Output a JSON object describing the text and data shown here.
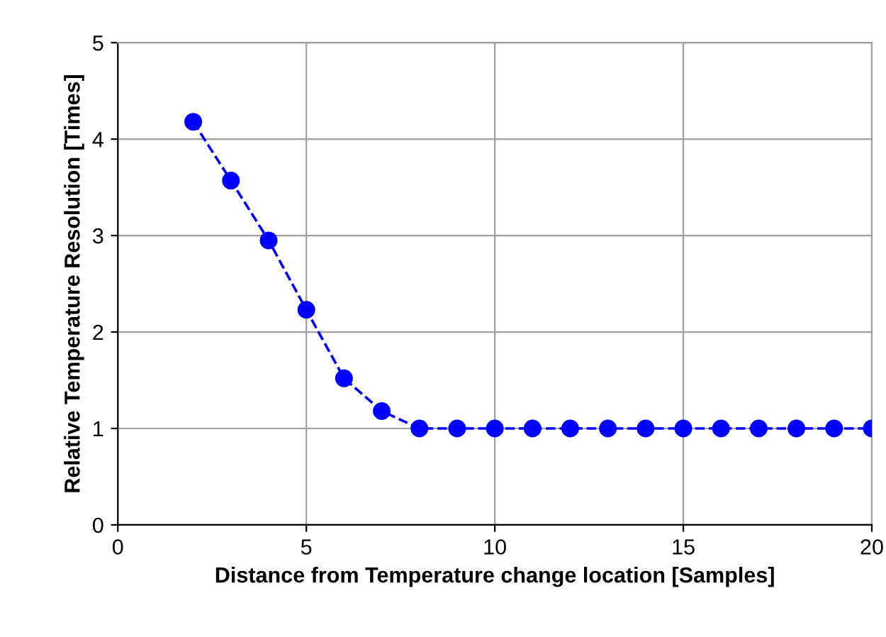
{
  "chart_data": {
    "type": "line",
    "xlabel": "Distance from Temperature change location [Samples]",
    "ylabel": "Relative Temperature Resolution [Times]",
    "x": [
      2,
      3,
      4,
      5,
      6,
      7,
      8,
      9,
      10,
      11,
      12,
      13,
      14,
      15,
      16,
      17,
      18,
      19,
      20
    ],
    "series": [
      {
        "color": "#0000ff",
        "values": [
          4.18,
          3.57,
          2.95,
          2.23,
          1.52,
          1.18,
          1.0,
          1.0,
          1.0,
          1.0,
          1.0,
          1.0,
          1.0,
          1.0,
          1.0,
          1.0,
          1.0,
          1.0,
          1.0
        ]
      }
    ],
    "xlim": [
      0,
      20
    ],
    "xticks": [
      0,
      5,
      10,
      15,
      20
    ],
    "ylim": [
      0,
      5
    ],
    "yticks": [
      0,
      1,
      2,
      3,
      4,
      5
    ],
    "grid": true,
    "marker": "circle",
    "line_style": "dashed"
  }
}
